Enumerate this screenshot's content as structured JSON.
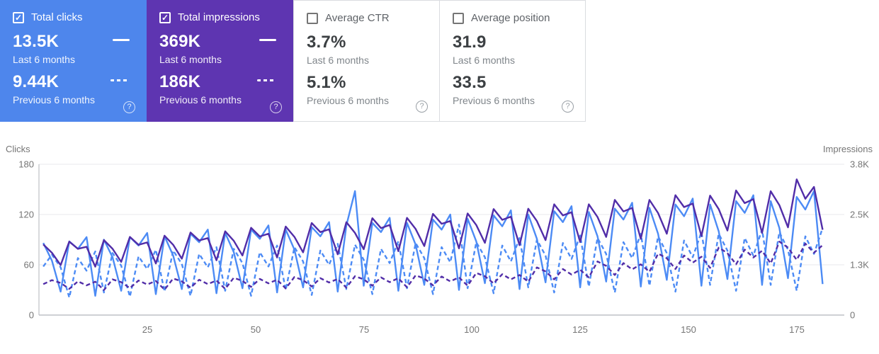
{
  "cards": [
    {
      "label": "Total clicks",
      "checked": true,
      "selected": true,
      "value_current": "13.5K",
      "period_current": "Last 6 months",
      "value_previous": "9.44K",
      "period_previous": "Previous 6 months",
      "help": "?",
      "check_glyph": "✓",
      "bg": "#4e86ec"
    },
    {
      "label": "Total impressions",
      "checked": true,
      "selected": true,
      "value_current": "369K",
      "period_current": "Last 6 months",
      "value_previous": "186K",
      "period_previous": "Previous 6 months",
      "help": "?",
      "check_glyph": "✓",
      "bg": "#5e35b1"
    },
    {
      "label": "Average CTR",
      "checked": false,
      "selected": false,
      "value_current": "3.7%",
      "period_current": "Last 6 months",
      "value_previous": "5.1%",
      "period_previous": "Previous 6 months",
      "help": "?",
      "check_glyph": "",
      "bg": "#ffffff"
    },
    {
      "label": "Average position",
      "checked": false,
      "selected": false,
      "value_current": "31.9",
      "period_current": "Last 6 months",
      "value_previous": "33.5",
      "period_previous": "Previous 6 months",
      "help": "?",
      "check_glyph": "",
      "bg": "#ffffff"
    }
  ],
  "chart": {
    "left_axis_label": "Clicks",
    "right_axis_label": "Impressions",
    "left_ticks": [
      "180",
      "120",
      "60",
      "0"
    ],
    "right_ticks": [
      "3.8K",
      "2.5K",
      "1.3K",
      "0"
    ],
    "x_ticks": [
      "25",
      "50",
      "75",
      "100",
      "125",
      "150",
      "175"
    ]
  },
  "chart_data": {
    "type": "line",
    "title": "",
    "xlabel": "",
    "left_ylabel": "Clicks",
    "right_ylabel": "Impressions",
    "clicks_axis_range": [
      0,
      180
    ],
    "impressions_axis_range": [
      0,
      3800
    ],
    "x_range": [
      0,
      186
    ],
    "x_tick_values": [
      25,
      50,
      75,
      100,
      125,
      150,
      175
    ],
    "grid": "horizontal",
    "legend_position": "none",
    "x": [
      1,
      3,
      5,
      7,
      9,
      11,
      13,
      15,
      17,
      19,
      21,
      23,
      25,
      27,
      29,
      31,
      33,
      35,
      37,
      39,
      41,
      43,
      45,
      47,
      49,
      51,
      53,
      55,
      57,
      59,
      61,
      63,
      65,
      67,
      69,
      71,
      73,
      75,
      77,
      79,
      81,
      83,
      85,
      87,
      89,
      91,
      93,
      95,
      97,
      99,
      101,
      103,
      105,
      107,
      109,
      111,
      113,
      115,
      117,
      119,
      121,
      123,
      125,
      127,
      129,
      131,
      133,
      135,
      137,
      139,
      141,
      143,
      145,
      147,
      149,
      151,
      153,
      155,
      157,
      159,
      161,
      163,
      165,
      167,
      169,
      171,
      173,
      175,
      177,
      179,
      181
    ],
    "series": [
      {
        "name": "Clicks - last 6 months",
        "slug": "clicks-current-line",
        "axis": "clicks",
        "style": "solid",
        "color": "#4c8bf5",
        "values": [
          86,
          65,
          28,
          88,
          79,
          93,
          23,
          90,
          69,
          29,
          93,
          83,
          98,
          25,
          94,
          71,
          31,
          97,
          87,
          102,
          26,
          98,
          75,
          32,
          102,
          91,
          107,
          27,
          102,
          78,
          33,
          105,
          94,
          111,
          28,
          107,
          148,
          35,
          110,
          99,
          116,
          29,
          110,
          84,
          36,
          114,
          102,
          120,
          30,
          115,
          88,
          38,
          119,
          106,
          125,
          31,
          120,
          91,
          39,
          124,
          111,
          130,
          33,
          123,
          94,
          40,
          127,
          114,
          134,
          34,
          128,
          97,
          42,
          132,
          118,
          139,
          35,
          132,
          100,
          43,
          136,
          122,
          143,
          36,
          136,
          104,
          44,
          141,
          126,
          148,
          37
        ]
      },
      {
        "name": "Clicks - previous 6 months",
        "slug": "clicks-previous-line",
        "axis": "clicks",
        "style": "dashed",
        "color": "#4c8bf5",
        "values": [
          58,
          72,
          57,
          21,
          68,
          53,
          76,
          27,
          74,
          59,
          22,
          70,
          55,
          78,
          28,
          77,
          61,
          23,
          73,
          57,
          81,
          29,
          79,
          62,
          23,
          75,
          58,
          83,
          30,
          81,
          64,
          24,
          77,
          60,
          85,
          31,
          84,
          66,
          25,
          79,
          62,
          88,
          32,
          86,
          68,
          25,
          81,
          63,
          108,
          32,
          87,
          69,
          26,
          83,
          64,
          92,
          33,
          90,
          71,
          27,
          86,
          67,
          95,
          34,
          92,
          73,
          27,
          87,
          68,
          97,
          35,
          94,
          74,
          28,
          89,
          69,
          99,
          36,
          97,
          77,
          29,
          92,
          71,
          102,
          36,
          99,
          78,
          29,
          94,
          73,
          104
        ]
      },
      {
        "name": "Impressions - last 6 months",
        "slug": "impressions-current-line",
        "axis": "impressions",
        "style": "solid",
        "color": "#512da8",
        "values": [
          1780,
          1570,
          1260,
          1850,
          1670,
          1720,
          1220,
          1890,
          1670,
          1340,
          1970,
          1770,
          1830,
          1300,
          2000,
          1770,
          1420,
          2080,
          1880,
          1940,
          1380,
          2110,
          1870,
          1500,
          2200,
          1980,
          2050,
          1450,
          2230,
          1970,
          1580,
          2320,
          2090,
          2160,
          1530,
          2340,
          2070,
          1660,
          2440,
          2190,
          2270,
          1610,
          2450,
          2170,
          1740,
          2550,
          2300,
          2370,
          1680,
          2560,
          2270,
          1820,
          2670,
          2400,
          2480,
          1760,
          2680,
          2370,
          1890,
          2790,
          2510,
          2590,
          1840,
          2790,
          2470,
          1970,
          2900,
          2610,
          2700,
          1920,
          2900,
          2570,
          2050,
          3020,
          2720,
          2810,
          1990,
          3010,
          2670,
          2130,
          3140,
          2820,
          2920,
          2070,
          3120,
          2770,
          2210,
          3420,
          2930,
          3230,
          2150
        ]
      },
      {
        "name": "Impressions - previous 6 months",
        "slug": "impressions-previous-line",
        "axis": "impressions",
        "style": "dashed",
        "color": "#512da8",
        "values": [
          780,
          880,
          810,
          660,
          850,
          750,
          840,
          630,
          900,
          830,
          680,
          870,
          770,
          860,
          640,
          920,
          850,
          690,
          890,
          780,
          870,
          660,
          940,
          860,
          710,
          910,
          800,
          890,
          670,
          960,
          880,
          720,
          930,
          820,
          910,
          690,
          980,
          900,
          740,
          950,
          830,
          930,
          700,
          1000,
          920,
          750,
          970,
          850,
          950,
          740,
          1060,
          980,
          800,
          1030,
          900,
          1010,
          840,
          1200,
          1100,
          900,
          1160,
          1020,
          1140,
          950,
          1350,
          1240,
          1010,
          1310,
          1150,
          1280,
          1090,
          1550,
          1430,
          1160,
          1500,
          1320,
          1470,
          1190,
          1700,
          1560,
          1280,
          1650,
          1450,
          1620,
          1300,
          1850,
          1700,
          1390,
          1800,
          1570,
          1760
        ]
      }
    ]
  }
}
